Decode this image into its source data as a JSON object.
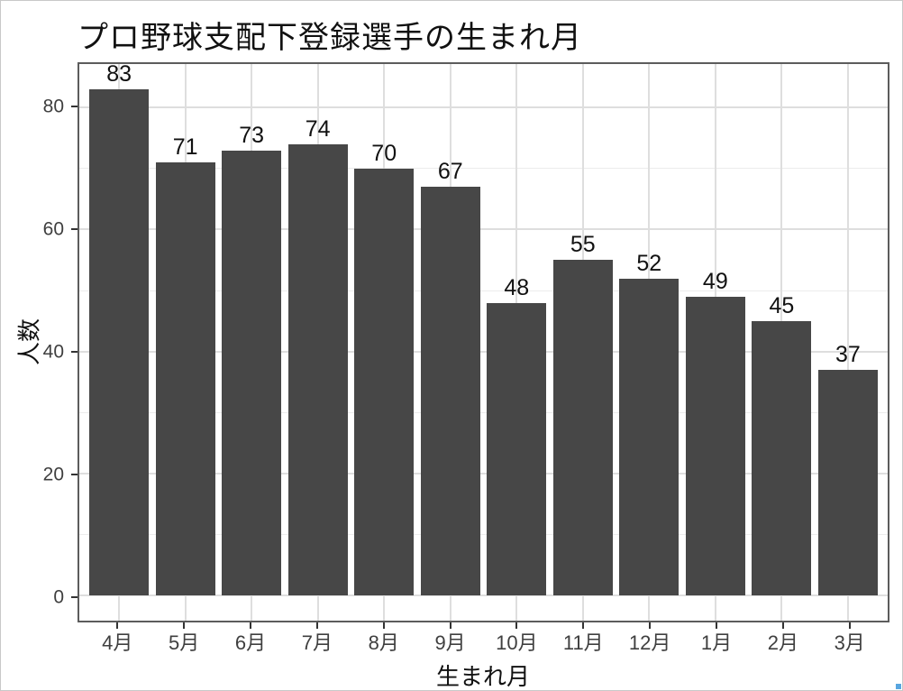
{
  "chart_data": {
    "type": "bar",
    "title": "プロ野球支配下登録選手の生まれ月",
    "xlabel": "生まれ月",
    "ylabel": "人数",
    "categories": [
      "4月",
      "5月",
      "6月",
      "7月",
      "8月",
      "9月",
      "10月",
      "11月",
      "12月",
      "1月",
      "2月",
      "3月"
    ],
    "values": [
      83,
      71,
      73,
      74,
      70,
      67,
      48,
      55,
      52,
      49,
      45,
      37
    ],
    "yticks": [
      0,
      20,
      40,
      60,
      80
    ],
    "minor_gridlines": [
      10,
      30,
      50,
      70
    ],
    "ylim": [
      -4.15,
      87.15
    ],
    "x_expand": 0.6,
    "bar_width": 0.9,
    "grid": "on",
    "legend_position": "none",
    "value_labels_shown": true,
    "colors": {
      "bar": "#474747",
      "panel_border": "#5c5c5c",
      "grid_major": "#dedede",
      "grid_minor": "#ececec",
      "tick_mark": "#333333",
      "tick_label": "#3f3f3f",
      "text": "#111111",
      "background": "#ffffff",
      "selection_handle": "#58a6e0"
    }
  }
}
